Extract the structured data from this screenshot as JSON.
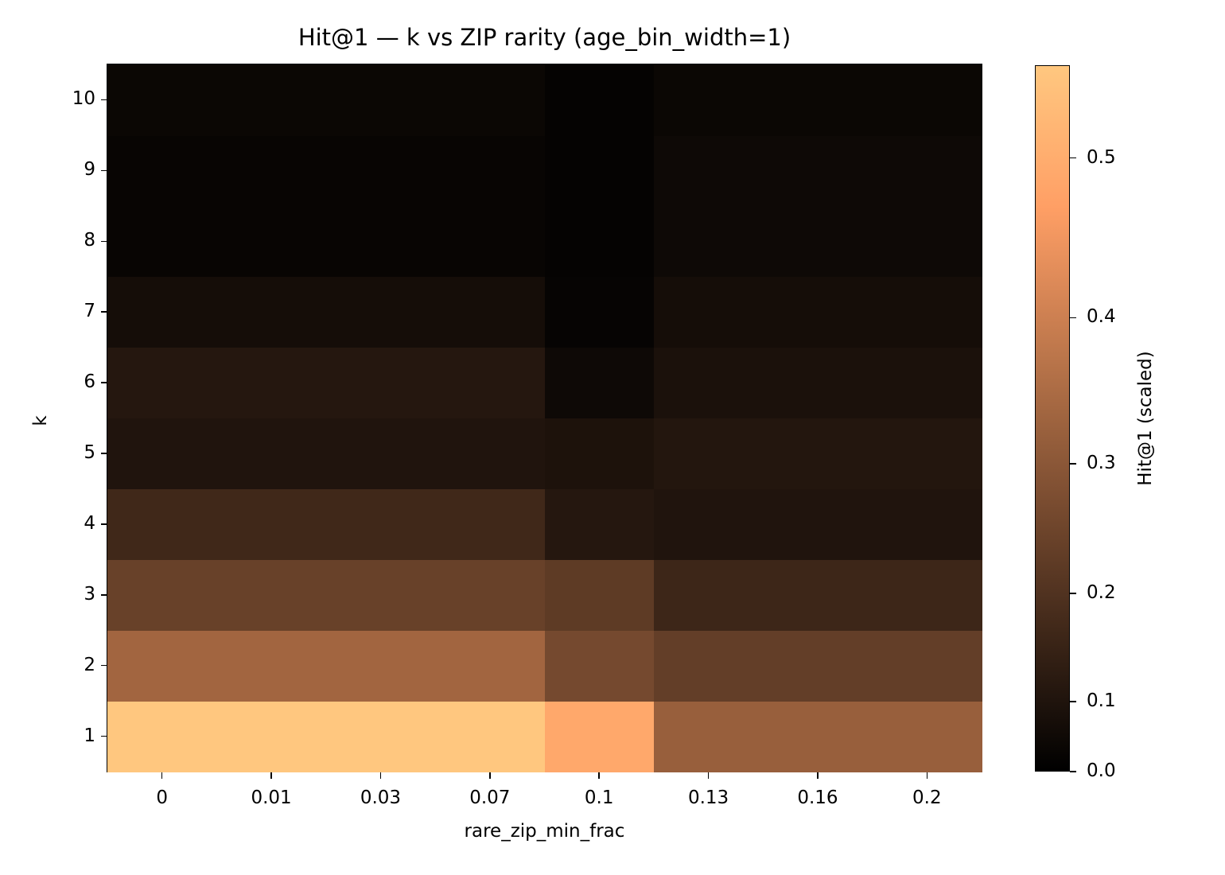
{
  "chart_data": {
    "type": "heatmap",
    "title": "Hit@1 — k vs ZIP rarity (age_bin_width=1)",
    "xlabel": "rare_zip_min_frac",
    "ylabel": "k",
    "x": [
      "0",
      "0.01",
      "0.03",
      "0.07",
      "0.1",
      "0.13",
      "0.16",
      "0.2"
    ],
    "y": [
      "1",
      "2",
      "3",
      "4",
      "5",
      "6",
      "7",
      "8",
      "9",
      "10"
    ],
    "values": [
      [
        0.555,
        0.555,
        0.555,
        0.555,
        0.489,
        0.32,
        0.32,
        0.32
      ],
      [
        0.336,
        0.336,
        0.336,
        0.336,
        0.264,
        0.234,
        0.234,
        0.234
      ],
      [
        0.242,
        0.242,
        0.242,
        0.242,
        0.225,
        0.163,
        0.163,
        0.163
      ],
      [
        0.169,
        0.169,
        0.169,
        0.169,
        0.112,
        0.101,
        0.101,
        0.101
      ],
      [
        0.101,
        0.101,
        0.101,
        0.101,
        0.093,
        0.108,
        0.108,
        0.108
      ],
      [
        0.112,
        0.112,
        0.112,
        0.112,
        0.056,
        0.089,
        0.089,
        0.089
      ],
      [
        0.073,
        0.073,
        0.073,
        0.073,
        0.031,
        0.073,
        0.073,
        0.073
      ],
      [
        0.036,
        0.036,
        0.036,
        0.036,
        0.025,
        0.056,
        0.056,
        0.056
      ],
      [
        0.036,
        0.036,
        0.036,
        0.036,
        0.025,
        0.056,
        0.056,
        0.056
      ],
      [
        0.046,
        0.046,
        0.046,
        0.046,
        0.025,
        0.046,
        0.046,
        0.046
      ]
    ],
    "colormap": "copper",
    "norm": {
      "type": "power",
      "gamma": 1.35,
      "vmin": 0.0,
      "vmax": 0.555
    },
    "colorbar": {
      "label": "Hit@1 (scaled)",
      "ticks": [
        "0.0",
        "0.1",
        "0.2",
        "0.3",
        "0.4",
        "0.5"
      ],
      "tick_values": [
        0.0,
        0.1,
        0.2,
        0.3,
        0.4,
        0.5
      ]
    },
    "grid": false
  }
}
